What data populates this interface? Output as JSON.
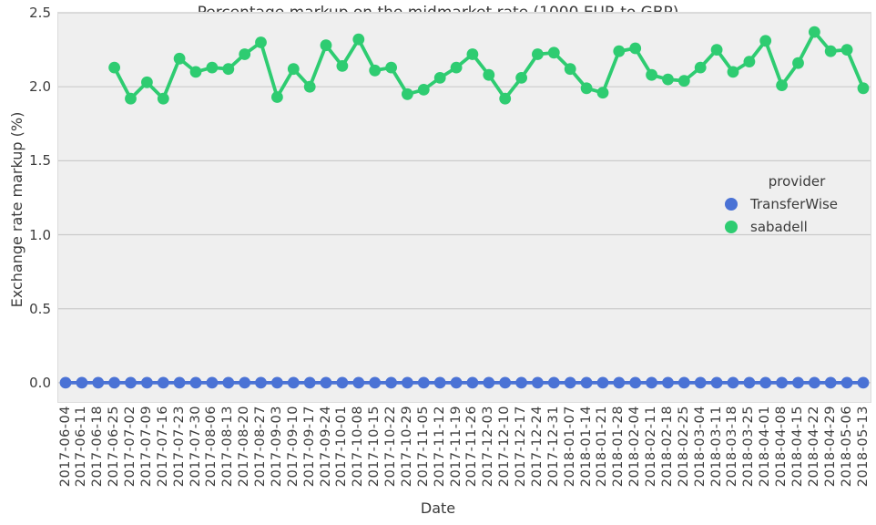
{
  "chart_data": {
    "type": "line",
    "title": "Percentage markup on the midmarket rate (1000 EUR to GBP)",
    "xlabel": "Date",
    "ylabel": "Exchange rate markup (%)",
    "legend_title": "provider",
    "legend_position": "center-right",
    "grid": "horizontal",
    "ylim": [
      -0.13,
      2.5
    ],
    "yticks": [
      0.0,
      0.5,
      1.0,
      1.5,
      2.0,
      2.5
    ],
    "categories": [
      "2017-06-04",
      "2017-06-11",
      "2017-06-18",
      "2017-06-25",
      "2017-07-02",
      "2017-07-09",
      "2017-07-16",
      "2017-07-23",
      "2017-07-30",
      "2017-08-06",
      "2017-08-13",
      "2017-08-20",
      "2017-08-27",
      "2017-09-03",
      "2017-09-10",
      "2017-09-17",
      "2017-09-24",
      "2017-10-01",
      "2017-10-08",
      "2017-10-15",
      "2017-10-22",
      "2017-10-29",
      "2017-11-05",
      "2017-11-12",
      "2017-11-19",
      "2017-11-26",
      "2017-12-03",
      "2017-12-10",
      "2017-12-17",
      "2017-12-24",
      "2017-12-31",
      "2018-01-07",
      "2018-01-14",
      "2018-01-21",
      "2018-01-28",
      "2018-02-04",
      "2018-02-11",
      "2018-02-18",
      "2018-02-25",
      "2018-03-04",
      "2018-03-11",
      "2018-03-18",
      "2018-03-25",
      "2018-04-01",
      "2018-04-08",
      "2018-04-15",
      "2018-04-22",
      "2018-04-29",
      "2018-05-06",
      "2018-05-13"
    ],
    "series": [
      {
        "name": "TransferWise",
        "color": "#4a72d5",
        "values": [
          0,
          0,
          0,
          0,
          0,
          0,
          0,
          0,
          0,
          0,
          0,
          0,
          0,
          0,
          0,
          0,
          0,
          0,
          0,
          0,
          0,
          0,
          0,
          0,
          0,
          0,
          0,
          0,
          0,
          0,
          0,
          0,
          0,
          0,
          0,
          0,
          0,
          0,
          0,
          0,
          0,
          0,
          0,
          0,
          0,
          0,
          0,
          0,
          0,
          0
        ]
      },
      {
        "name": "sabadell",
        "color": "#2ecc71",
        "values": [
          null,
          null,
          null,
          2.13,
          1.92,
          2.03,
          1.92,
          2.19,
          2.1,
          2.13,
          2.12,
          2.22,
          2.3,
          1.93,
          2.12,
          2.0,
          2.28,
          2.14,
          2.32,
          2.11,
          2.13,
          1.95,
          1.98,
          2.06,
          2.13,
          2.22,
          2.08,
          1.92,
          2.06,
          2.22,
          2.23,
          2.12,
          1.99,
          1.96,
          2.24,
          2.26,
          2.08,
          2.05,
          2.04,
          2.13,
          2.25,
          2.1,
          2.17,
          2.31,
          2.01,
          2.16,
          2.37,
          2.24,
          2.25,
          1.99
        ]
      }
    ]
  },
  "colors": {
    "figure_bg": "#ffffff",
    "plot_bg": "#efefef",
    "grid": "#cbcbcb",
    "text": "#3b3b3b"
  }
}
